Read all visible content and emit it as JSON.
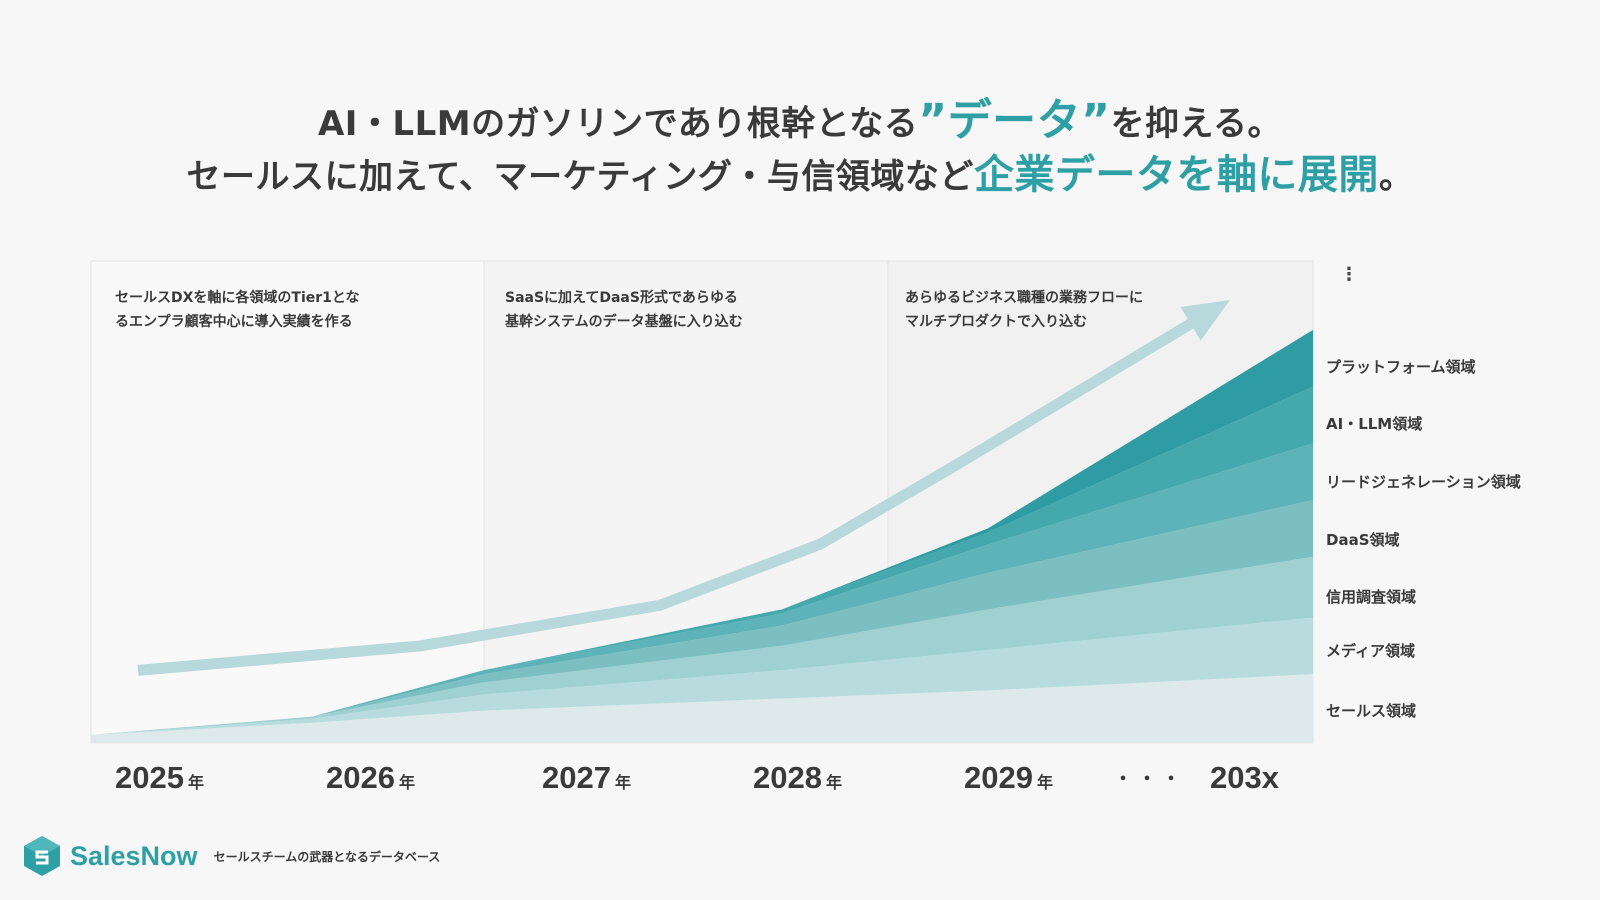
{
  "headline": {
    "line1_pre": "AI・LLMのガソリンであり根幹となる",
    "line1_accent": "”データ”",
    "line1_post": "を抑える。",
    "line2_pre": "セールスに加えて、マーケティング・与信領域など",
    "line2_accent": "企業データを軸に展開",
    "line2_post": "。"
  },
  "phases": [
    {
      "line1": "セールスDXを軸に各領域のTier1とな",
      "line2": "るエンプラ顧客中心に導入実績を作る"
    },
    {
      "line1": "SaaSに加えてDaaS形式であらゆる",
      "line2": "基幹システムのデータ基盤に入り込む"
    },
    {
      "line1": "あらゆるビジネス職種の業務フローに",
      "line2": "マルチプロダクトで入り込む"
    }
  ],
  "more_indicator": "⋮",
  "chart_data": {
    "type": "area",
    "stacked": true,
    "title": "",
    "xlabel": "",
    "ylabel": "",
    "x": [
      "2025",
      "2026",
      "2027",
      "2028",
      "2029",
      "203x"
    ],
    "ylim": [
      0,
      100
    ],
    "series": [
      {
        "name": "セールス領域",
        "values": [
          2,
          5,
          8,
          11,
          13,
          17
        ],
        "color": "#dde9ea"
      },
      {
        "name": "メディア領域",
        "values": [
          0,
          1,
          4,
          7,
          10,
          14
        ],
        "color": "#b8dcde"
      },
      {
        "name": "信用調査領域",
        "values": [
          0,
          0.5,
          3,
          6,
          10,
          15
        ],
        "color": "#9fd0d2"
      },
      {
        "name": "DaaS領域",
        "values": [
          0,
          0,
          2,
          5,
          9,
          14
        ],
        "color": "#7bbfc2"
      },
      {
        "name": "リードジェネレーション領域",
        "values": [
          0,
          0,
          1,
          3,
          7,
          14
        ],
        "color": "#5db3b7"
      },
      {
        "name": "AI・LLM領域",
        "values": [
          0,
          0,
          0,
          1,
          3,
          14
        ],
        "color": "#45a8ad"
      },
      {
        "name": "プラットフォーム領域",
        "values": [
          0,
          0,
          0,
          0,
          1,
          14
        ],
        "color": "#2e9ca2"
      }
    ],
    "trend_arrow": {
      "values": [
        9,
        15,
        25,
        40,
        60,
        100
      ],
      "color": "#b7d9db"
    },
    "x_unit": "年",
    "x_ellipsis": "・・・",
    "phase_bands": [
      "2025-2026",
      "2027-2028",
      "2029-203x"
    ]
  },
  "logo": {
    "name": "SalesNow",
    "tagline": "セールスチームの武器となるデータベース",
    "color": "#2e9fa4"
  }
}
